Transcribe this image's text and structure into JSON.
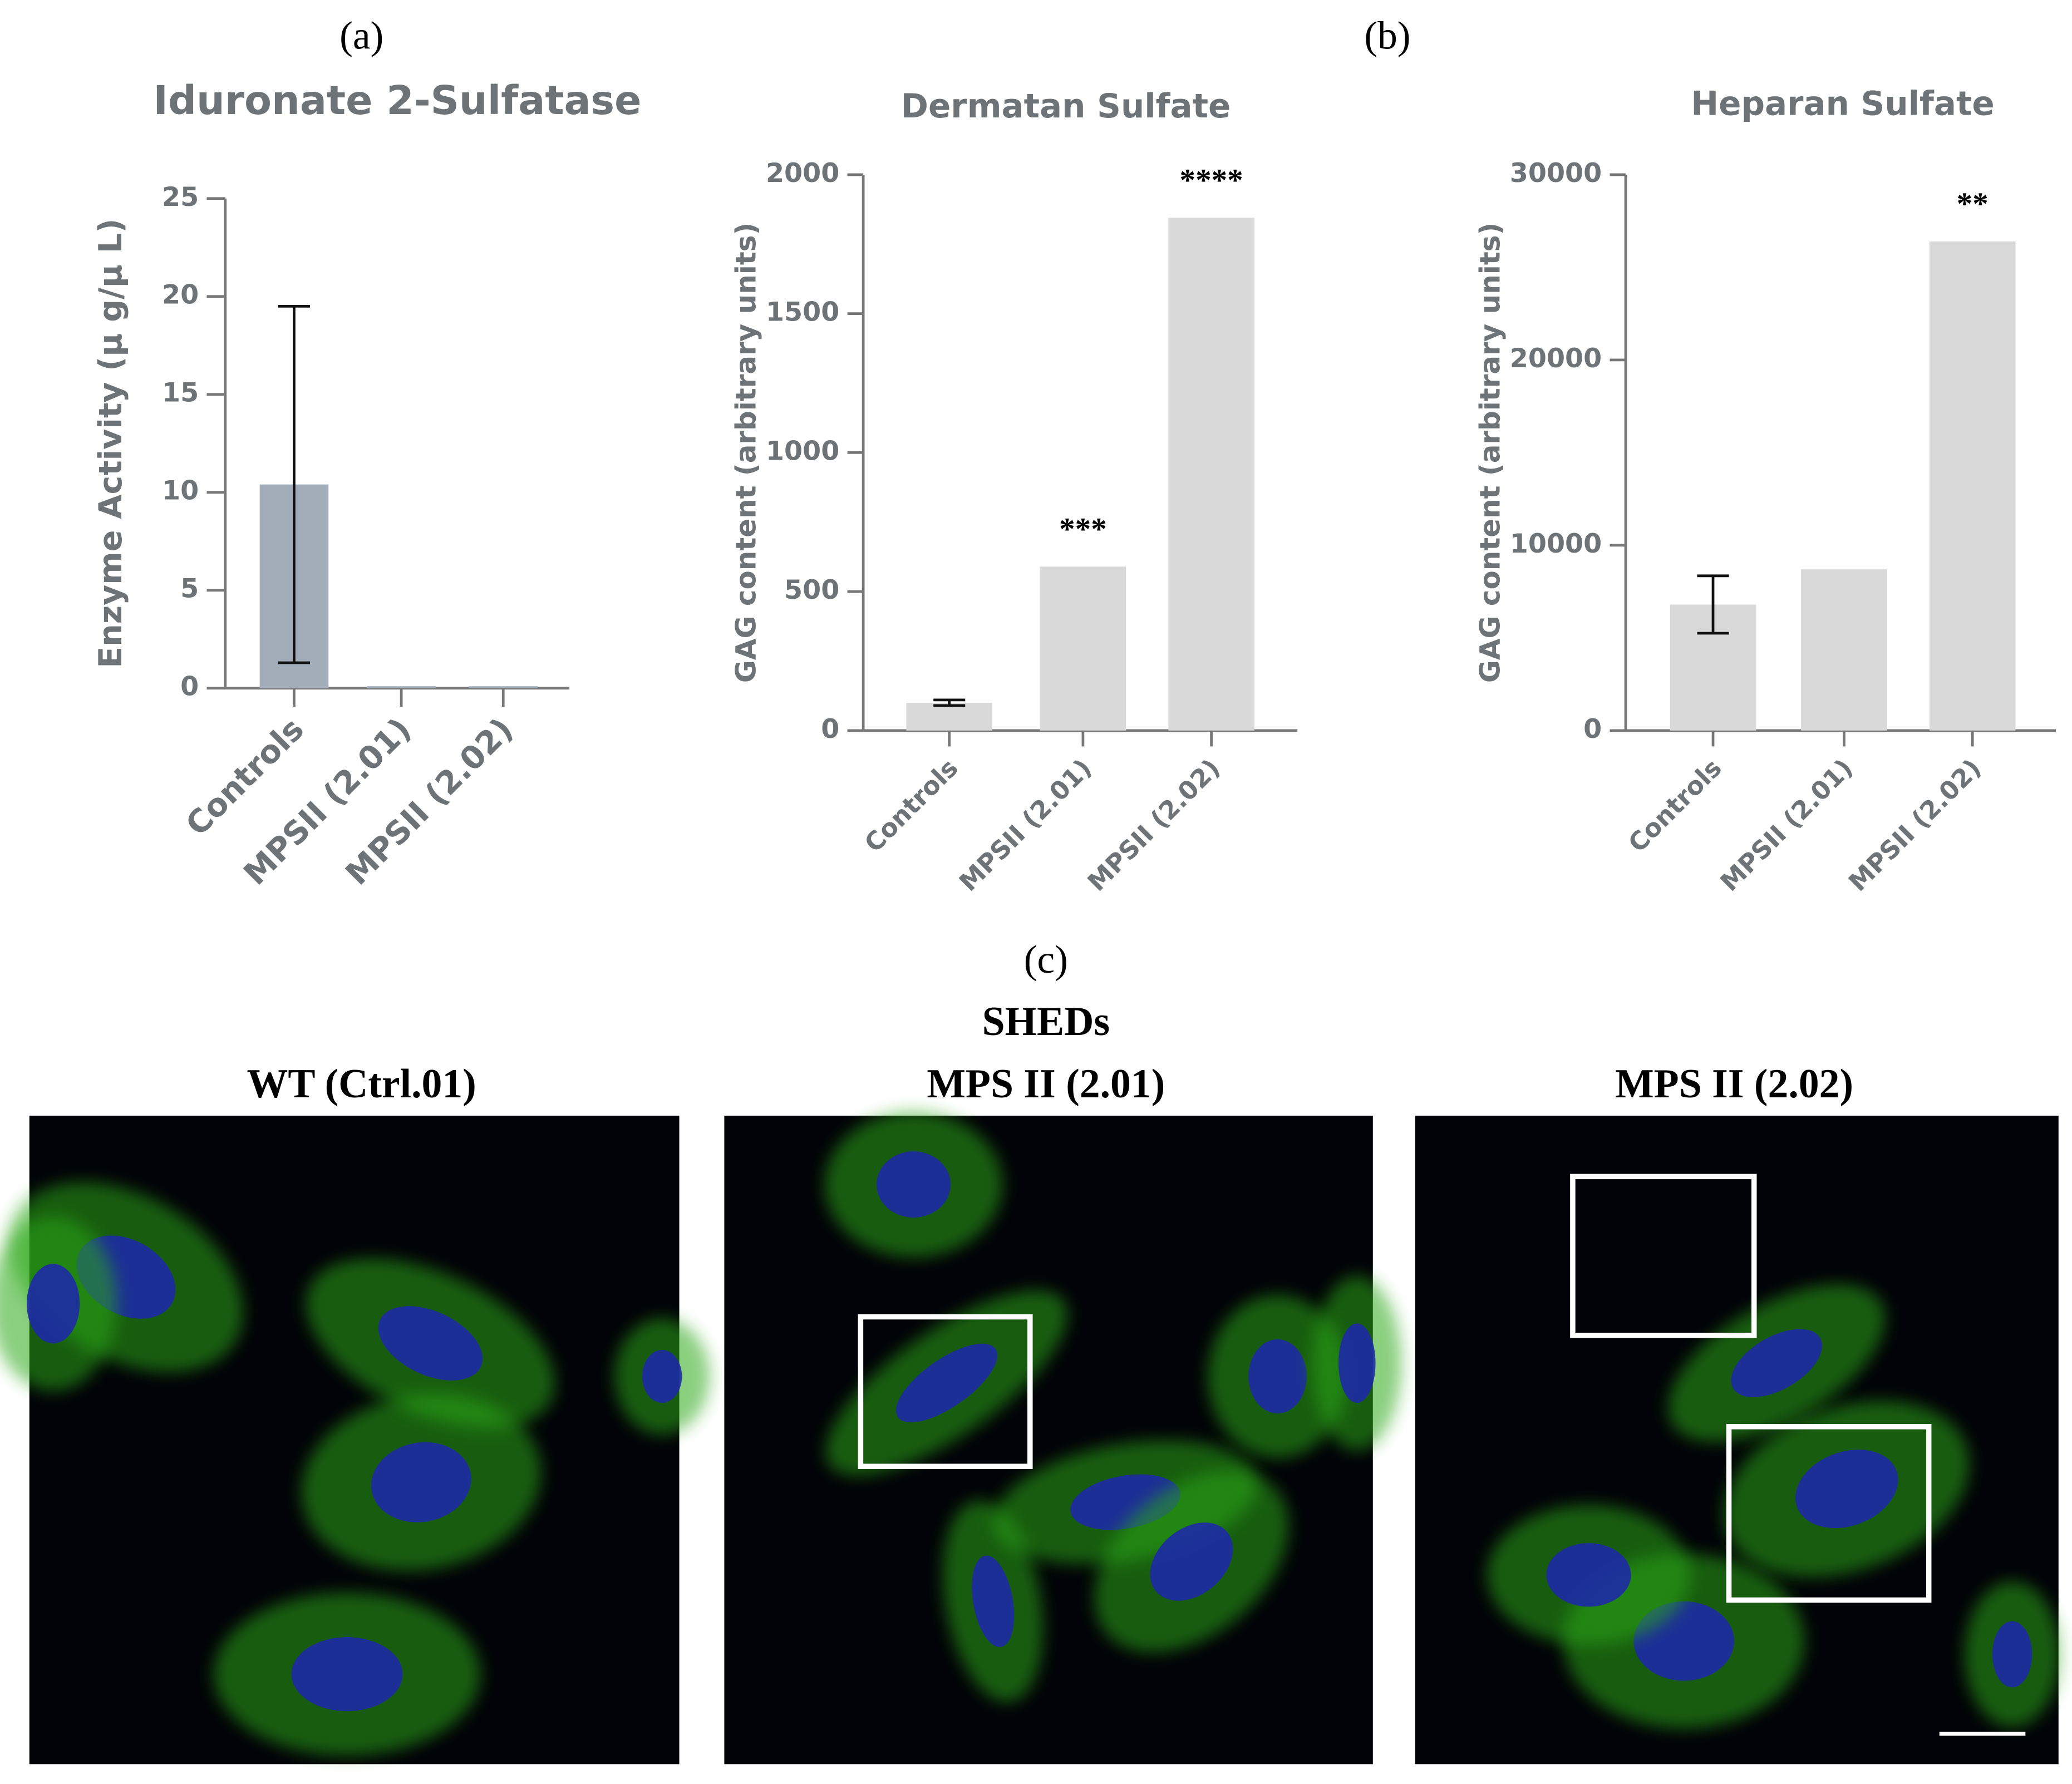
{
  "chart_data": [
    {
      "type": "bar",
      "title": "Iduronate 2-Sulfatase",
      "y_label": "Enzyme Activity (µ g/µ L)",
      "categories": [
        "Controls",
        "MPSII (2.01)",
        "MPSII (2.02)"
      ],
      "values": [
        10.4,
        0.1,
        0.1
      ],
      "errors": [
        9.1,
        null,
        null
      ],
      "color": "#a3adb9",
      "ylim": [
        0,
        25
      ],
      "yticks": [
        0,
        5,
        10,
        15,
        20,
        25
      ]
    },
    {
      "type": "bar",
      "title": "Dermatan Sulfate",
      "y_label": "GAG content (arbitrary units)",
      "categories": [
        "Controls",
        "MPSII (2.01)",
        "MPSII (2.02)"
      ],
      "values": [
        100,
        590,
        1845
      ],
      "errors": [
        10,
        null,
        null
      ],
      "significance": [
        null,
        "***",
        "****"
      ],
      "color": "#d9d9d9",
      "ylim": [
        0,
        2000
      ],
      "yticks": [
        0,
        500,
        1000,
        1500,
        2000
      ]
    },
    {
      "type": "bar",
      "title": "Heparan Sulfate",
      "y_label": "GAG content (arbitrary units)",
      "categories": [
        "Controls",
        "MPSII (2.01)",
        "MPSII (2.02)"
      ],
      "values": [
        6800,
        8700,
        26400
      ],
      "errors": [
        1550,
        null,
        null
      ],
      "significance": [
        null,
        null,
        "**"
      ],
      "color": "#d9d9d9",
      "ylim": [
        0,
        30000
      ],
      "yticks": [
        0,
        10000,
        20000,
        30000
      ]
    }
  ],
  "panel_labels": [
    "(a)",
    "(b)",
    "(c)"
  ],
  "figure_c": {
    "title": "SHEDs",
    "images": [
      "WT (Ctrl.01)",
      "MPS II (2.01)",
      "MPS II (2.02)"
    ]
  }
}
